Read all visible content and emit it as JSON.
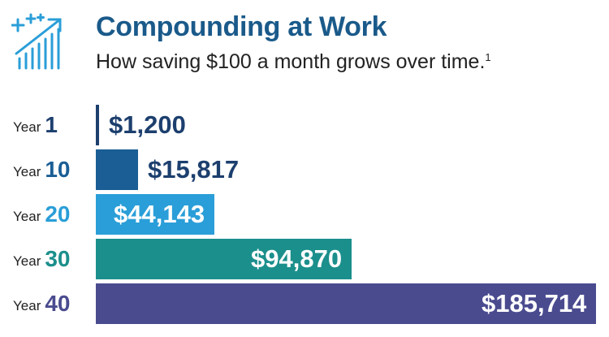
{
  "header": {
    "icon": "growth-chart-icon",
    "title": "Compounding at Work",
    "subtitle": "How saving $100 a month grows over time.",
    "footnote_mark": "1"
  },
  "row_label_prefix": "Year",
  "chart_data": {
    "type": "bar",
    "orientation": "horizontal",
    "categories": [
      "1",
      "10",
      "20",
      "30",
      "40"
    ],
    "values": [
      1200,
      15817,
      44143,
      94870,
      185714
    ],
    "value_labels": [
      "$1,200",
      "$15,817",
      "$44,143",
      "$94,870",
      "$185,714"
    ],
    "colors": [
      "#1c3f6e",
      "#1a5e95",
      "#2a9ed8",
      "#1b8f8c",
      "#4a4b8f"
    ],
    "xlim": [
      0,
      185714
    ],
    "grid": false,
    "legend": "none"
  }
}
